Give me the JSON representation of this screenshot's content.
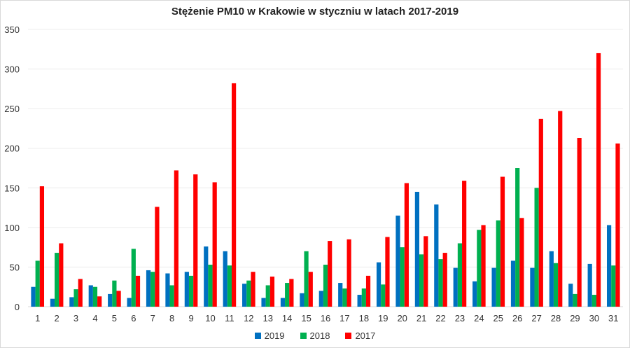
{
  "chart_data": {
    "type": "bar",
    "title": "Stężenie PM10 w Krakowie w styczniu w latach 2017-2019",
    "xlabel": "",
    "ylabel": "",
    "ylim": [
      0,
      350
    ],
    "yticks": [
      0,
      50,
      100,
      150,
      200,
      250,
      300,
      350
    ],
    "grid": true,
    "legend_position": "bottom",
    "categories": [
      "1",
      "2",
      "3",
      "4",
      "5",
      "6",
      "7",
      "8",
      "9",
      "10",
      "11",
      "12",
      "13",
      "14",
      "15",
      "16",
      "17",
      "18",
      "19",
      "20",
      "21",
      "22",
      "23",
      "24",
      "25",
      "26",
      "27",
      "28",
      "29",
      "30",
      "31"
    ],
    "series": [
      {
        "name": "2019",
        "color": "#0070c0",
        "values": [
          25,
          10,
          12,
          27,
          16,
          11,
          46,
          42,
          44,
          76,
          70,
          29,
          11,
          11,
          17,
          20,
          30,
          15,
          56,
          115,
          145,
          129,
          49,
          32,
          49,
          58,
          49,
          70,
          29,
          54,
          103
        ]
      },
      {
        "name": "2018",
        "color": "#00b050",
        "values": [
          58,
          68,
          22,
          25,
          33,
          73,
          44,
          27,
          39,
          53,
          52,
          33,
          27,
          30,
          70,
          53,
          23,
          23,
          28,
          75,
          66,
          60,
          80,
          97,
          109,
          175,
          150,
          55,
          16,
          15,
          52
        ]
      },
      {
        "name": "2017",
        "color": "#ff0000",
        "values": [
          152,
          80,
          35,
          13,
          20,
          39,
          126,
          172,
          167,
          157,
          282,
          44,
          38,
          35,
          44,
          83,
          85,
          39,
          88,
          156,
          89,
          68,
          159,
          103,
          164,
          112,
          237,
          247,
          213,
          320,
          206
        ]
      }
    ]
  }
}
